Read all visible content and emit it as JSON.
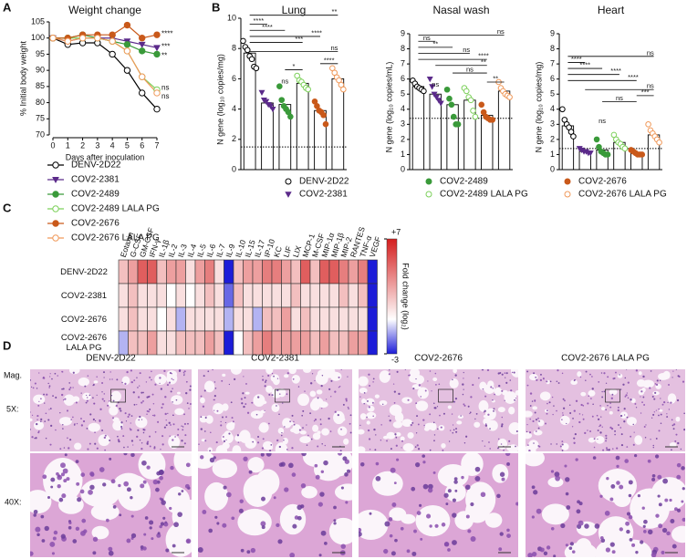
{
  "chart_data": [
    {
      "type": "line",
      "panel": "A",
      "title": "Weight change",
      "xlabel": "Days after inoculation",
      "ylabel": "% Initial body weight",
      "x": [
        0,
        1,
        2,
        3,
        4,
        5,
        6,
        7
      ],
      "xlim": [
        0,
        7
      ],
      "xticks": [
        0,
        1,
        2,
        3,
        4,
        5,
        6,
        7
      ],
      "ylim": [
        70,
        105
      ],
      "yticks": [
        70,
        75,
        80,
        85,
        90,
        95,
        100,
        105
      ],
      "series": [
        {
          "name": "DENV-2D22",
          "color": "#000000",
          "marker": "circle-open",
          "values": [
            100,
            98,
            98.5,
            98.5,
            95,
            90,
            83,
            78
          ]
        },
        {
          "name": "COV2-2381",
          "color": "#5b2a8a",
          "marker": "triangle-down",
          "values": [
            100,
            99,
            100,
            100,
            100,
            99,
            98,
            97
          ]
        },
        {
          "name": "COV2-2489",
          "color": "#3a9a3a",
          "marker": "circle",
          "values": [
            100,
            100,
            101,
            100,
            99,
            98,
            96,
            95
          ]
        },
        {
          "name": "COV2-2489 LALA PG",
          "color": "#7cd05a",
          "marker": "circle-open",
          "values": [
            100,
            100,
            100,
            100,
            99,
            96,
            88,
            84
          ]
        },
        {
          "name": "COV2-2676",
          "color": "#c9591a",
          "marker": "circle",
          "values": [
            100,
            100,
            101,
            101,
            101,
            104,
            100,
            101
          ]
        },
        {
          "name": "COV2-2676 LALA PG",
          "color": "#f0995a",
          "marker": "circle-open",
          "values": [
            100,
            99,
            100,
            100,
            99,
            96,
            88,
            83
          ]
        }
      ],
      "annotations": [
        "****",
        "***",
        "**",
        "ns",
        "ns"
      ]
    },
    {
      "type": "dotbar",
      "panel": "B",
      "series": [
        {
          "name": "DENV-2D22",
          "color": "#000000",
          "marker": "circle-open"
        },
        {
          "name": "COV2-2381",
          "color": "#5b2a8a",
          "marker": "triangle-down"
        },
        {
          "name": "COV2-2489",
          "color": "#3a9a3a",
          "marker": "circle"
        },
        {
          "name": "COV2-2489 LALA PG",
          "color": "#7cd05a",
          "marker": "circle-open"
        },
        {
          "name": "COV2-2676",
          "color": "#c9591a",
          "marker": "circle"
        },
        {
          "name": "COV2-2676 LALA PG",
          "color": "#f0995a",
          "marker": "circle-open"
        }
      ],
      "plots": [
        {
          "title": "Lung",
          "ylabel": "N gene (log₁₀ copies/mg)",
          "ylim": [
            0,
            10
          ],
          "yticks": [
            0,
            2,
            4,
            6,
            8,
            10
          ],
          "lod": 1.5,
          "values": [
            7.7,
            4.4,
            4.3,
            5.7,
            3.9,
            6.0
          ],
          "points": [
            [
              8.5,
              8.1,
              7.9,
              7.5,
              7.3,
              6.8,
              6.7
            ],
            [
              5.1,
              4.6,
              4.5,
              4.3,
              4.2,
              4.0
            ],
            [
              5.5,
              4.6,
              4.2,
              4.0,
              3.8,
              3.5
            ],
            [
              6.2,
              5.9,
              5.8,
              5.6,
              5.4,
              5.3
            ],
            [
              4.5,
              4.2,
              3.9,
              3.8,
              3.6,
              3.0
            ],
            [
              6.7,
              6.4,
              6.1,
              5.9,
              5.6,
              5.3
            ]
          ],
          "annotations": [
            "****",
            "**",
            "****",
            "****",
            "***",
            "ns",
            "*",
            "****",
            "ns"
          ]
        },
        {
          "title": "Nasal wash",
          "ylabel": "N gene (log₁₀ copies/mL)",
          "ylim": [
            0,
            9
          ],
          "yticks": [
            0,
            1,
            2,
            3,
            4,
            5,
            6,
            7,
            8,
            9
          ],
          "lod": 3.4,
          "values": [
            5.5,
            5.0,
            4.3,
            4.6,
            3.6,
            5.2
          ],
          "points": [
            [
              5.9,
              5.7,
              5.5,
              5.4,
              5.3,
              5.2
            ],
            [
              6.0,
              5.5,
              5.0,
              4.8,
              4.6,
              4.4
            ],
            [
              5.3,
              4.7,
              4.3,
              3.5,
              3.0,
              3.0
            ],
            [
              5.4,
              5.2,
              4.8,
              4.6,
              3.9,
              3.5
            ],
            [
              4.3,
              3.8,
              3.5,
              3.4,
              3.3,
              3.3
            ],
            [
              5.8,
              5.4,
              5.2,
              5.0,
              4.9,
              4.8
            ]
          ],
          "annotations": [
            "ns",
            "ns",
            "**",
            "ns",
            "****",
            "**",
            "ns",
            "ns",
            "**"
          ]
        },
        {
          "title": "Heart",
          "ylabel": "N gene (log₁₀ copies/mg)",
          "ylim": [
            0,
            9
          ],
          "yticks": [
            0,
            1,
            2,
            3,
            4,
            5,
            6,
            7,
            8,
            9
          ],
          "lod": 1.4,
          "values": [
            2.9,
            1.2,
            1.3,
            1.8,
            1.1,
            2.3
          ],
          "points": [
            [
              4.0,
              3.3,
              3.0,
              2.8,
              2.5,
              2.2
            ],
            [
              1.4,
              1.3,
              1.2,
              1.2,
              1.1,
              1.1
            ],
            [
              2.0,
              1.5,
              1.2,
              1.1,
              1.0,
              1.0
            ],
            [
              2.3,
              2.0,
              1.8,
              1.7,
              1.5,
              1.4
            ],
            [
              1.3,
              1.2,
              1.1,
              1.0,
              1.0,
              1.0
            ],
            [
              3.0,
              2.6,
              2.4,
              2.2,
              2.0,
              1.8
            ]
          ],
          "annotations": [
            "ns",
            "****",
            "****",
            "****",
            "****",
            "ns",
            "ns",
            "***",
            "ns"
          ]
        }
      ]
    },
    {
      "type": "heatmap",
      "panel": "C",
      "columns": [
        "Eotaxin",
        "G-CSF",
        "GM-CSF",
        "IFN-γ",
        "IL-1β",
        "IL-2",
        "IL-3",
        "IL-4",
        "IL-5",
        "IL-6",
        "IL-7",
        "IL-9",
        "IL-10",
        "IL-15",
        "IL-17",
        "IP-10",
        "KC",
        "LIF",
        "LIX",
        "MCP-1",
        "M-CSF",
        "MIP-1α",
        "MIP-1β",
        "MIP-2",
        "RANTES",
        "TNF-α",
        "VEGF"
      ],
      "rows": [
        "DENV-2D22",
        "COV2-2381",
        "COV2-2676",
        "COV2-2676 LALA PG"
      ],
      "values": [
        [
          2,
          3,
          5,
          5,
          2,
          3,
          3,
          1,
          3,
          4,
          1,
          -3,
          2,
          3,
          3,
          4,
          4,
          3,
          2,
          5,
          2,
          5,
          5,
          4,
          3,
          4,
          -3
        ],
        [
          1,
          2,
          1,
          1,
          1,
          0,
          1,
          0,
          1,
          2,
          1,
          -2,
          2,
          1,
          1,
          1,
          1,
          1,
          2,
          1,
          1,
          1,
          1,
          2,
          1,
          2,
          -3
        ],
        [
          1,
          2,
          1,
          1,
          0,
          1,
          -1,
          1,
          1,
          1,
          1,
          -1,
          1,
          1,
          -1,
          2,
          2,
          3,
          1,
          2,
          1,
          1,
          1,
          1,
          1,
          1,
          -3
        ],
        [
          -1,
          2,
          2,
          3,
          1,
          1,
          2,
          2,
          2,
          3,
          2,
          -3,
          0,
          2,
          3,
          4,
          3,
          3,
          3,
          3,
          2,
          3,
          2,
          2,
          3,
          3,
          -3
        ]
      ],
      "zlim": [
        -3,
        7
      ],
      "zticks": [
        {
          "value": 7,
          "label": "+7"
        },
        -3
      ],
      "colors": [
        "#1c1cd8",
        "#ffffff",
        "#d41e1e"
      ],
      "colorbar_label": "Fold change (log₂)"
    }
  ],
  "histology": {
    "panel": "D",
    "row_header": "Mag.",
    "rows": [
      "5X:",
      "40X:"
    ],
    "columns": [
      "DENV-2D22",
      "COV2-2381",
      "COV2-2676",
      "COV2-2676 LALA PG"
    ]
  }
}
